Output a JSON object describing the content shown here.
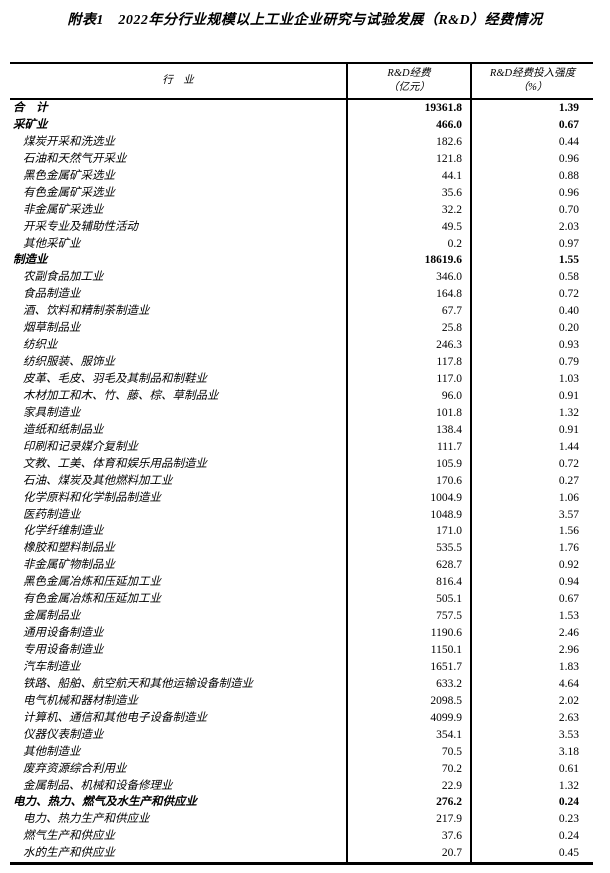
{
  "page": {
    "title": "附表1　2022年分行业规模以上工业企业研究与试验发展（R&D）经费情况"
  },
  "table": {
    "columns": {
      "industry": "行　业",
      "rd_line1": "R&D经费",
      "rd_line2": "（亿元）",
      "intensity_line1": "R&D经费投入强度",
      "intensity_line2": "（%）"
    },
    "rows": [
      {
        "label": "合　计",
        "rd": "19361.8",
        "intensity": "1.39",
        "bold": true,
        "indent": 0
      },
      {
        "label": "采矿业",
        "rd": "466.0",
        "intensity": "0.67",
        "bold": true,
        "indent": 0
      },
      {
        "label": "煤炭开采和洗选业",
        "rd": "182.6",
        "intensity": "0.44",
        "bold": false,
        "indent": 1
      },
      {
        "label": "石油和天然气开采业",
        "rd": "121.8",
        "intensity": "0.96",
        "bold": false,
        "indent": 1
      },
      {
        "label": "黑色金属矿采选业",
        "rd": "44.1",
        "intensity": "0.88",
        "bold": false,
        "indent": 1
      },
      {
        "label": "有色金属矿采选业",
        "rd": "35.6",
        "intensity": "0.96",
        "bold": false,
        "indent": 1
      },
      {
        "label": "非金属矿采选业",
        "rd": "32.2",
        "intensity": "0.70",
        "bold": false,
        "indent": 1
      },
      {
        "label": "开采专业及辅助性活动",
        "rd": "49.5",
        "intensity": "2.03",
        "bold": false,
        "indent": 1
      },
      {
        "label": "其他采矿业",
        "rd": "0.2",
        "intensity": "0.97",
        "bold": false,
        "indent": 1
      },
      {
        "label": "制造业",
        "rd": "18619.6",
        "intensity": "1.55",
        "bold": true,
        "indent": 0
      },
      {
        "label": "农副食品加工业",
        "rd": "346.0",
        "intensity": "0.58",
        "bold": false,
        "indent": 1
      },
      {
        "label": "食品制造业",
        "rd": "164.8",
        "intensity": "0.72",
        "bold": false,
        "indent": 1
      },
      {
        "label": "酒、饮料和精制茶制造业",
        "rd": "67.7",
        "intensity": "0.40",
        "bold": false,
        "indent": 1
      },
      {
        "label": "烟草制品业",
        "rd": "25.8",
        "intensity": "0.20",
        "bold": false,
        "indent": 1
      },
      {
        "label": "纺织业",
        "rd": "246.3",
        "intensity": "0.93",
        "bold": false,
        "indent": 1
      },
      {
        "label": "纺织服装、服饰业",
        "rd": "117.8",
        "intensity": "0.79",
        "bold": false,
        "indent": 1
      },
      {
        "label": "皮革、毛皮、羽毛及其制品和制鞋业",
        "rd": "117.0",
        "intensity": "1.03",
        "bold": false,
        "indent": 1
      },
      {
        "label": "木材加工和木、竹、藤、棕、草制品业",
        "rd": "96.0",
        "intensity": "0.91",
        "bold": false,
        "indent": 1
      },
      {
        "label": "家具制造业",
        "rd": "101.8",
        "intensity": "1.32",
        "bold": false,
        "indent": 1
      },
      {
        "label": "造纸和纸制品业",
        "rd": "138.4",
        "intensity": "0.91",
        "bold": false,
        "indent": 1
      },
      {
        "label": "印刷和记录媒介复制业",
        "rd": "111.7",
        "intensity": "1.44",
        "bold": false,
        "indent": 1
      },
      {
        "label": "文教、工美、体育和娱乐用品制造业",
        "rd": "105.9",
        "intensity": "0.72",
        "bold": false,
        "indent": 1
      },
      {
        "label": "石油、煤炭及其他燃料加工业",
        "rd": "170.6",
        "intensity": "0.27",
        "bold": false,
        "indent": 1
      },
      {
        "label": "化学原料和化学制品制造业",
        "rd": "1004.9",
        "intensity": "1.06",
        "bold": false,
        "indent": 1
      },
      {
        "label": "医药制造业",
        "rd": "1048.9",
        "intensity": "3.57",
        "bold": false,
        "indent": 1
      },
      {
        "label": "化学纤维制造业",
        "rd": "171.0",
        "intensity": "1.56",
        "bold": false,
        "indent": 1
      },
      {
        "label": "橡胶和塑料制品业",
        "rd": "535.5",
        "intensity": "1.76",
        "bold": false,
        "indent": 1
      },
      {
        "label": "非金属矿物制品业",
        "rd": "628.7",
        "intensity": "0.92",
        "bold": false,
        "indent": 1
      },
      {
        "label": "黑色金属冶炼和压延加工业",
        "rd": "816.4",
        "intensity": "0.94",
        "bold": false,
        "indent": 1
      },
      {
        "label": "有色金属冶炼和压延加工业",
        "rd": "505.1",
        "intensity": "0.67",
        "bold": false,
        "indent": 1
      },
      {
        "label": "金属制品业",
        "rd": "757.5",
        "intensity": "1.53",
        "bold": false,
        "indent": 1
      },
      {
        "label": "通用设备制造业",
        "rd": "1190.6",
        "intensity": "2.46",
        "bold": false,
        "indent": 1
      },
      {
        "label": "专用设备制造业",
        "rd": "1150.1",
        "intensity": "2.96",
        "bold": false,
        "indent": 1
      },
      {
        "label": "汽车制造业",
        "rd": "1651.7",
        "intensity": "1.83",
        "bold": false,
        "indent": 1
      },
      {
        "label": "铁路、船舶、航空航天和其他运输设备制造业",
        "rd": "633.2",
        "intensity": "4.64",
        "bold": false,
        "indent": 1
      },
      {
        "label": "电气机械和器材制造业",
        "rd": "2098.5",
        "intensity": "2.02",
        "bold": false,
        "indent": 1
      },
      {
        "label": "计算机、通信和其他电子设备制造业",
        "rd": "4099.9",
        "intensity": "2.63",
        "bold": false,
        "indent": 1
      },
      {
        "label": "仪器仪表制造业",
        "rd": "354.1",
        "intensity": "3.53",
        "bold": false,
        "indent": 1
      },
      {
        "label": "其他制造业",
        "rd": "70.5",
        "intensity": "3.18",
        "bold": false,
        "indent": 1
      },
      {
        "label": "废弃资源综合利用业",
        "rd": "70.2",
        "intensity": "0.61",
        "bold": false,
        "indent": 1
      },
      {
        "label": "金属制品、机械和设备修理业",
        "rd": "22.9",
        "intensity": "1.32",
        "bold": false,
        "indent": 1
      },
      {
        "label": "电力、热力、燃气及水生产和供应业",
        "rd": "276.2",
        "intensity": "0.24",
        "bold": true,
        "indent": 0
      },
      {
        "label": "电力、热力生产和供应业",
        "rd": "217.9",
        "intensity": "0.23",
        "bold": false,
        "indent": 1
      },
      {
        "label": "燃气生产和供应业",
        "rd": "37.6",
        "intensity": "0.24",
        "bold": false,
        "indent": 1
      },
      {
        "label": "水的生产和供应业",
        "rd": "20.7",
        "intensity": "0.45",
        "bold": false,
        "indent": 1
      }
    ]
  }
}
